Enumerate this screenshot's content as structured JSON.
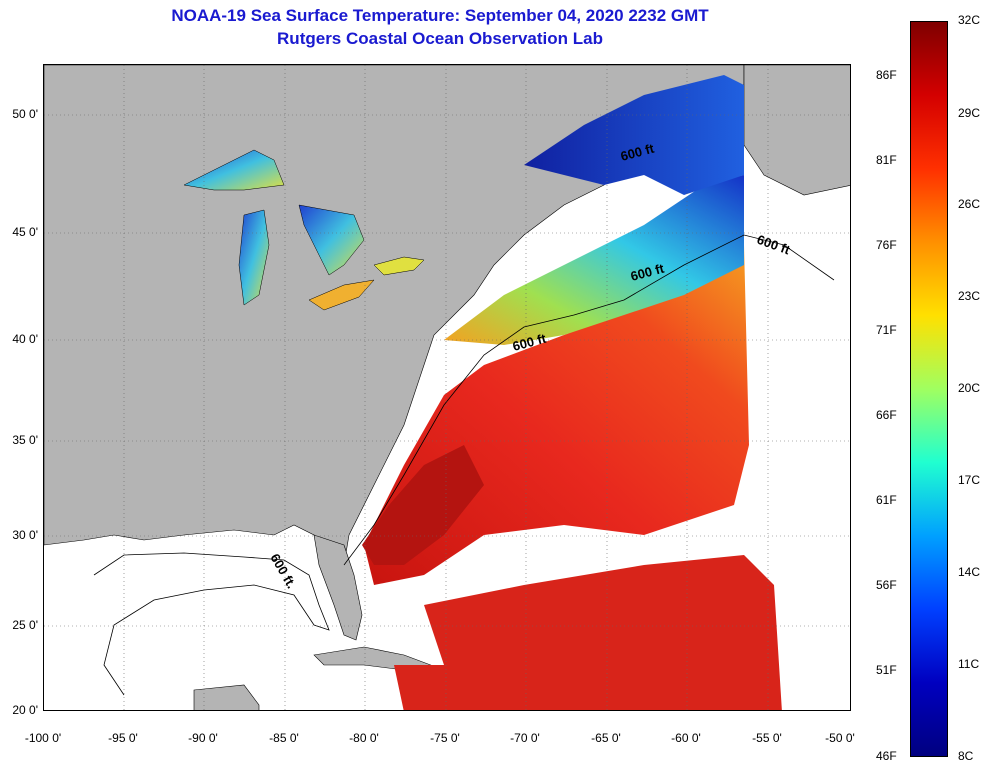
{
  "title": {
    "line1": "NOAA-19 Sea Surface Temperature:  September 04, 2020 2232 GMT",
    "line2": "Rutgers Coastal Ocean Observation Lab"
  },
  "map": {
    "lon_range": [
      -100,
      -50
    ],
    "lat_range": [
      20,
      52.5
    ],
    "x_ticks": [
      "-100 0'",
      "-95 0'",
      "-90 0'",
      "-85 0'",
      "-80 0'",
      "-75 0'",
      "-70 0'",
      "-65 0'",
      "-60 0'",
      "-55 0'",
      "-50 0'"
    ],
    "y_ticks": [
      "50 0'",
      "45 0'",
      "40 0'",
      "35 0'",
      "30 0'",
      "25 0'",
      "20 0'"
    ],
    "contour_labels": [
      "600 ft",
      "600 ft",
      "600 ft",
      "600 ft",
      "600 ft."
    ],
    "colors": {
      "land": "#b4b4b4",
      "no_data": "#ffffff",
      "warm_ocean": "#e8281e",
      "hot_ocean": "#c8140f",
      "mid_ocean": "#f5781e",
      "cool_ocean": "#32c8e6",
      "cold_ocean": "#1432c8"
    }
  },
  "colorbar": {
    "celsius_labels": [
      "32C",
      "29C",
      "26C",
      "23C",
      "20C",
      "17C",
      "14C",
      "11C",
      "8C"
    ],
    "fahrenheit_labels": [
      "86F",
      "81F",
      "76F",
      "71F",
      "66F",
      "61F",
      "56F",
      "51F",
      "46F"
    ],
    "range_c": [
      8,
      32
    ],
    "range_f": [
      46,
      90
    ],
    "colors": [
      "#7f0000",
      "#d40000",
      "#ff3000",
      "#ff9000",
      "#ffe000",
      "#a0ff60",
      "#20ffd0",
      "#00a0ff",
      "#0040ff",
      "#0000c0",
      "#000080"
    ]
  }
}
